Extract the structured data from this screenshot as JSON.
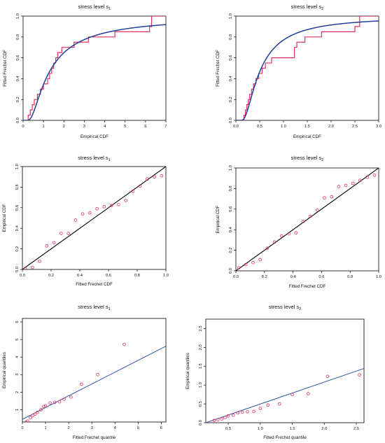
{
  "chart_data": [
    {
      "type": "line",
      "title": "stress level s",
      "title_subscript": "1",
      "xlabel": "Empirical CDF",
      "ylabel": "Fitted Frechet CDF",
      "xlim": [
        0,
        7
      ],
      "ylim": [
        0,
        1
      ],
      "xticks": [
        0,
        1,
        2,
        3,
        4,
        5,
        6,
        7
      ],
      "yticks": [
        0,
        0.2,
        0.4,
        0.6,
        0.8,
        1.0
      ],
      "ytick_labels": [
        "0.0",
        "0.2",
        "0.4",
        "0.6",
        "0.8",
        "1.0"
      ],
      "xtick_labels": [
        "0",
        "1",
        "2",
        "3",
        "4",
        "5",
        "6",
        "7"
      ],
      "colors": {
        "step": "#e0305f",
        "curve": "#1f3f9a"
      },
      "step_x": [
        0.25,
        0.35,
        0.45,
        0.55,
        0.7,
        0.85,
        1.0,
        1.2,
        1.3,
        1.4,
        1.5,
        1.6,
        1.7,
        1.9,
        2.5,
        3.2,
        4.5,
        6.2,
        6.3,
        7.0
      ],
      "step_y": [
        0.05,
        0.1,
        0.15,
        0.2,
        0.25,
        0.3,
        0.35,
        0.4,
        0.45,
        0.5,
        0.55,
        0.6,
        0.65,
        0.7,
        0.75,
        0.8,
        0.85,
        0.9,
        1.0,
        1.0
      ],
      "frechet": {
        "shape": 1.3,
        "scale": 1.05
      }
    },
    {
      "type": "line",
      "title": "stress level s",
      "title_subscript": "2",
      "xlabel": "Empirical CDF",
      "ylabel": "Fitted Frechet CDF",
      "xlim": [
        0,
        3
      ],
      "ylim": [
        0,
        1
      ],
      "xticks": [
        0,
        0.5,
        1.0,
        1.5,
        2.0,
        2.5,
        3.0
      ],
      "xtick_labels": [
        "0.0",
        "0.5",
        "1.0",
        "1.5",
        "2.0",
        "2.5",
        "3.0"
      ],
      "yticks": [
        0,
        0.2,
        0.4,
        0.6,
        0.8,
        1.0
      ],
      "ytick_labels": [
        "0.0",
        "0.2",
        "0.4",
        "0.6",
        "0.8",
        "1.0"
      ],
      "colors": {
        "step": "#e0305f",
        "curve": "#1f3f9a"
      },
      "step_x": [
        0.17,
        0.2,
        0.23,
        0.26,
        0.29,
        0.33,
        0.37,
        0.42,
        0.48,
        0.55,
        0.62,
        0.75,
        1.23,
        1.28,
        1.45,
        1.8,
        2.5,
        2.6,
        3.0
      ],
      "step_y": [
        0.05,
        0.1,
        0.15,
        0.2,
        0.25,
        0.3,
        0.35,
        0.4,
        0.45,
        0.5,
        0.55,
        0.6,
        0.7,
        0.75,
        0.8,
        0.85,
        0.9,
        1.0,
        1.0
      ],
      "frechet": {
        "shape": 1.55,
        "scale": 0.42
      }
    },
    {
      "type": "scatter",
      "title": "stress level s",
      "title_subscript": "1",
      "xlabel": "Fitted Frechet CDF",
      "ylabel": "Empirical CDF",
      "xlim": [
        0,
        1
      ],
      "ylim": [
        0,
        1
      ],
      "xticks": [
        0,
        0.2,
        0.4,
        0.6,
        0.8,
        1.0
      ],
      "xtick_labels": [
        "0.0",
        "0.2",
        "0.4",
        "0.6",
        "0.8",
        "1.0"
      ],
      "yticks": [
        0,
        0.2,
        0.4,
        0.6,
        0.8,
        1.0
      ],
      "ytick_labels": [
        "0.0",
        "0.2",
        "0.4",
        "0.6",
        "0.8",
        "1.0"
      ],
      "colors": {
        "points": "#e0305f",
        "line": "#000000"
      },
      "line": [
        [
          0,
          0
        ],
        [
          1,
          1
        ]
      ],
      "x": [
        0.02,
        0.07,
        0.12,
        0.17,
        0.22,
        0.27,
        0.32,
        0.37,
        0.42,
        0.47,
        0.52,
        0.57,
        0.62,
        0.67,
        0.72,
        0.77,
        0.82,
        0.87,
        0.92,
        0.97
      ],
      "y": [
        0.01,
        0.02,
        0.08,
        0.23,
        0.26,
        0.35,
        0.35,
        0.48,
        0.54,
        0.55,
        0.59,
        0.61,
        0.62,
        0.63,
        0.67,
        0.76,
        0.81,
        0.88,
        0.9,
        0.91
      ]
    },
    {
      "type": "scatter",
      "title": "stress level s",
      "title_subscript": "2",
      "xlabel": "Fitted Frechet CDF",
      "ylabel": "Empirical CDF",
      "xlim": [
        0,
        1
      ],
      "ylim": [
        0,
        1
      ],
      "xticks": [
        0,
        0.2,
        0.4,
        0.6,
        0.8,
        1.0
      ],
      "xtick_labels": [
        "0.0",
        "0.2",
        "0.4",
        "0.6",
        "0.8",
        "1.0"
      ],
      "yticks": [
        0,
        0.2,
        0.4,
        0.6,
        0.8,
        1.0
      ],
      "ytick_labels": [
        "0.0",
        "0.2",
        "0.4",
        "0.6",
        "0.8",
        "1.0"
      ],
      "colors": {
        "points": "#e0305f",
        "line": "#000000"
      },
      "line": [
        [
          0,
          0
        ],
        [
          1,
          1
        ]
      ],
      "x": [
        0.02,
        0.07,
        0.12,
        0.17,
        0.22,
        0.27,
        0.32,
        0.37,
        0.42,
        0.47,
        0.52,
        0.57,
        0.62,
        0.67,
        0.72,
        0.77,
        0.82,
        0.87,
        0.92,
        0.97
      ],
      "y": [
        0.03,
        0.06,
        0.08,
        0.11,
        0.22,
        0.28,
        0.34,
        0.36,
        0.37,
        0.48,
        0.53,
        0.59,
        0.71,
        0.72,
        0.82,
        0.83,
        0.85,
        0.88,
        0.91,
        0.93
      ]
    },
    {
      "type": "scatter",
      "title": "stress level s",
      "title_subscript": "1",
      "xlabel": "Fitted Frechet quantile",
      "ylabel": "Empirical quantiles",
      "xlim": [
        0,
        6.2
      ],
      "ylim": [
        0.3,
        6.2
      ],
      "xticks": [
        0,
        1,
        2,
        3,
        4,
        5,
        6
      ],
      "xtick_labels": [
        "0",
        "1",
        "2",
        "3",
        "4",
        "5",
        "6"
      ],
      "yticks": [
        1,
        2,
        3,
        4,
        5,
        6
      ],
      "ytick_labels": [
        "1",
        "2",
        "3",
        "4",
        "5",
        "6"
      ],
      "colors": {
        "points": "#e0305f",
        "line": "#2b57a8"
      },
      "line": [
        [
          0,
          0.45
        ],
        [
          6.2,
          4.62
        ]
      ],
      "x": [
        0.15,
        0.22,
        0.35,
        0.45,
        0.55,
        0.65,
        0.8,
        0.92,
        1.0,
        1.2,
        1.4,
        1.6,
        1.8,
        2.1,
        2.55,
        3.25,
        4.4
      ],
      "y": [
        0.28,
        0.35,
        0.55,
        0.68,
        0.75,
        0.85,
        1.0,
        1.18,
        1.22,
        1.38,
        1.42,
        1.45,
        1.6,
        1.72,
        2.45,
        3.0,
        4.72
      ]
    },
    {
      "type": "scatter",
      "title": "stress level s",
      "title_subscript": "2",
      "xlabel": "Fitted Frechet quantile",
      "ylabel": "Empirical quantiles",
      "xlim": [
        0.15,
        2.62
      ],
      "ylim": [
        0,
        2.75
      ],
      "xticks": [
        0.5,
        1.0,
        1.5,
        2.0,
        2.5
      ],
      "xtick_labels": [
        "0.5",
        "1.0",
        "1.5",
        "2.0",
        "2.5"
      ],
      "yticks": [
        0,
        0.5,
        1.0,
        1.5,
        2.0,
        2.5
      ],
      "ytick_labels": [
        "0.0",
        "0.5",
        "1.0",
        "1.5",
        "2.0",
        "2.5"
      ],
      "colors": {
        "points": "#e0305f",
        "line": "#2b57a8"
      },
      "line": [
        [
          0.15,
          0.0
        ],
        [
          2.62,
          1.44
        ]
      ],
      "x": [
        0.28,
        0.34,
        0.4,
        0.45,
        0.5,
        0.58,
        0.65,
        0.72,
        0.8,
        0.9,
        1.0,
        1.12,
        1.3,
        1.5,
        1.75,
        2.05,
        2.55
      ],
      "y": [
        0.06,
        0.08,
        0.1,
        0.14,
        0.18,
        0.2,
        0.26,
        0.28,
        0.29,
        0.3,
        0.38,
        0.47,
        0.5,
        0.75,
        0.77,
        1.23,
        1.27
      ]
    }
  ]
}
